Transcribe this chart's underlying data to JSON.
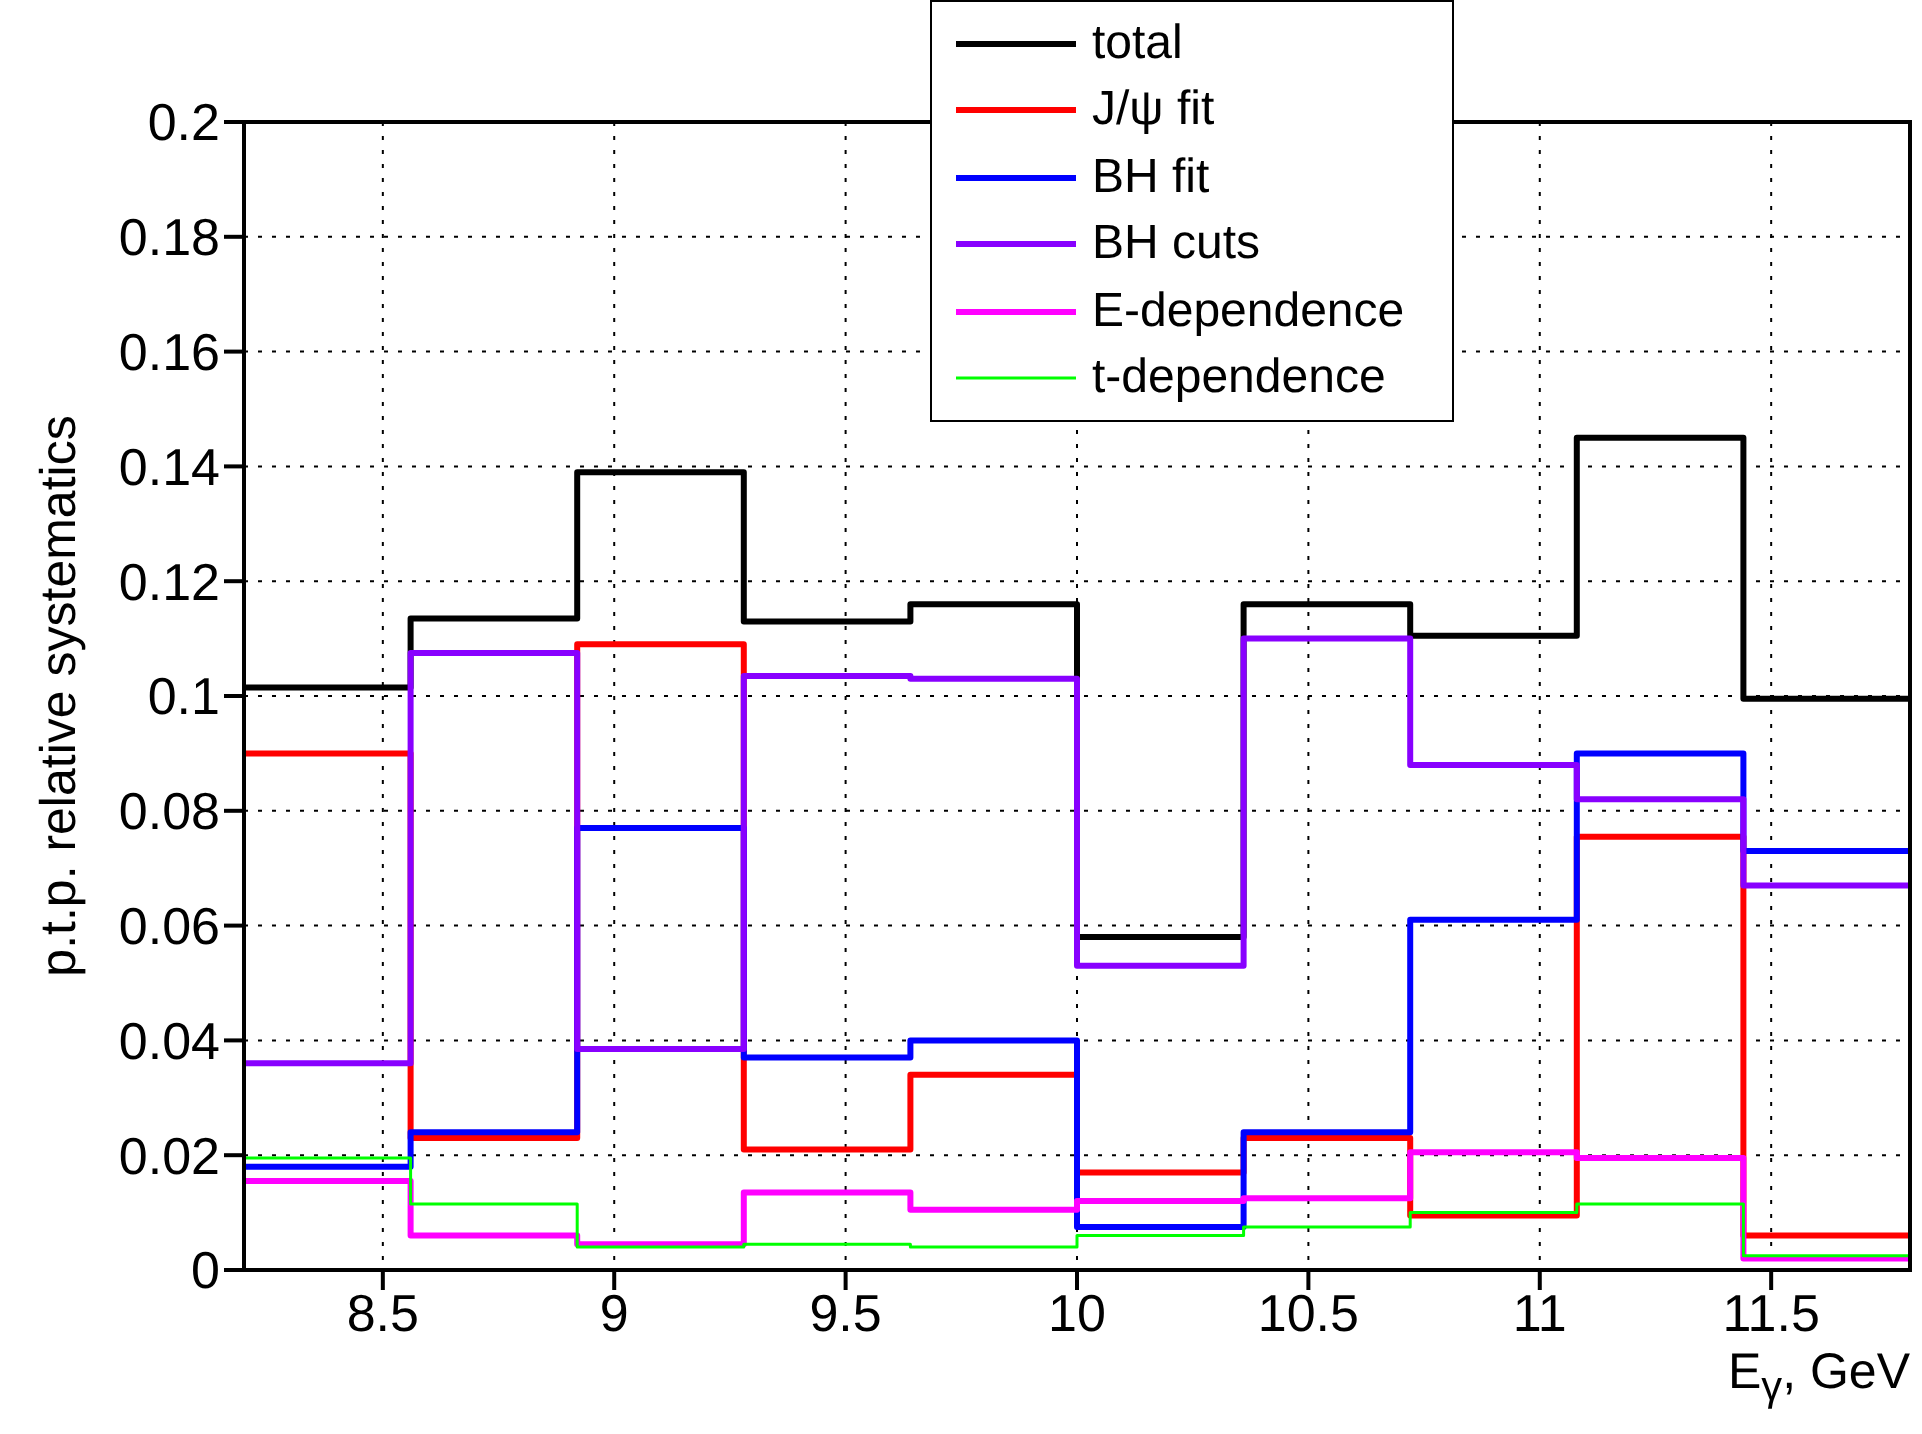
{
  "chart_data": {
    "type": "step",
    "xlabel": "E$_{γ}$, GeV",
    "ylabel": "p.t.p. relative systematics",
    "x": [
      8.2,
      8.56,
      8.92,
      9.28,
      9.64,
      10.0,
      10.36,
      10.72,
      11.08,
      11.44,
      11.8
    ],
    "series": [
      {
        "name": "total",
        "color": "#000000",
        "values": [
          0.1015,
          0.1135,
          0.139,
          0.113,
          0.116,
          0.058,
          0.116,
          0.1105,
          0.145,
          0.0995,
          0.0995
        ]
      },
      {
        "name": "J/ψ fit",
        "color": "#ff0000",
        "values": [
          0.09,
          0.023,
          0.109,
          0.021,
          0.034,
          0.017,
          0.023,
          0.0095,
          0.0755,
          0.006,
          0.006
        ]
      },
      {
        "name": "BH fit",
        "color": "#0000ff",
        "values": [
          0.018,
          0.024,
          0.077,
          0.037,
          0.04,
          0.0075,
          0.024,
          0.061,
          0.09,
          0.073,
          0.073
        ]
      },
      {
        "name": "BH cuts",
        "color": "#8800ff",
        "values": [
          0.036,
          0.1075,
          0.0385,
          0.1035,
          0.103,
          0.053,
          0.11,
          0.088,
          0.082,
          0.067,
          0.067
        ]
      },
      {
        "name": "E-dependence",
        "color": "#ff00ff",
        "values": [
          0.0155,
          0.006,
          0.0045,
          0.0135,
          0.0105,
          0.012,
          0.0125,
          0.0205,
          0.0195,
          0.002,
          0.002
        ]
      },
      {
        "name": "t-dependence",
        "color": "#00ff00",
        "values": [
          0.0195,
          0.0115,
          0.004,
          0.0045,
          0.004,
          0.006,
          0.0075,
          0.01,
          0.0115,
          0.0025,
          0.0025
        ]
      }
    ],
    "xlim": [
      8.2,
      11.8
    ],
    "xticks": [
      8.5,
      9,
      9.5,
      10,
      10.5,
      11,
      11.5
    ],
    "ylim": [
      0,
      0.2
    ],
    "yticks": [
      0,
      0.02,
      0.04,
      0.06,
      0.08,
      0.1,
      0.12,
      0.14,
      0.16,
      0.18,
      0.2
    ],
    "grid": true,
    "legend": "top",
    "marker": "none",
    "line_style": "solid"
  }
}
